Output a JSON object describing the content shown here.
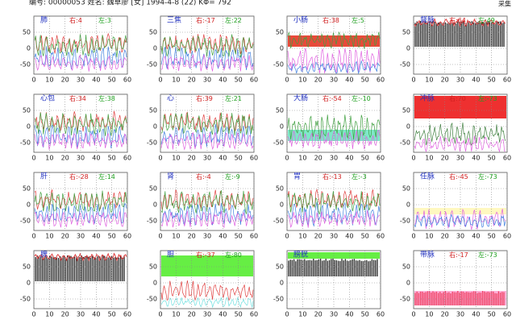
{
  "header": {
    "text": "编号: 00000053  姓名: 魏草廖 [女] 1994-4-8 (22)  KΦ= 792",
    "corner": "采集"
  },
  "right_prefix": "右:",
  "left_prefix": "左:",
  "ylim": [
    -80,
    100
  ],
  "yticks": [
    50,
    0,
    -50
  ],
  "xlim": [
    0,
    60
  ],
  "xticks": [
    0,
    10,
    20,
    30,
    40,
    50,
    60
  ],
  "panels": [
    {
      "name": "肺",
      "right": 4,
      "left": 3
    },
    {
      "name": "三焦",
      "right": -17,
      "left": 22
    },
    {
      "name": "小肠",
      "right": 38,
      "left": 5
    },
    {
      "name": "督脉",
      "right": 64,
      "left": 49
    },
    {
      "name": "心包",
      "right": 34,
      "left": 38
    },
    {
      "name": "心",
      "right": 39,
      "left": 21
    },
    {
      "name": "大肠",
      "right": -54,
      "left": -10
    },
    {
      "name": "冲脉",
      "right": 70,
      "left": -73
    },
    {
      "name": "肝",
      "right": -28,
      "left": 14
    },
    {
      "name": "肾",
      "right": -4,
      "left": -9
    },
    {
      "name": "胃",
      "right": -13,
      "left": -3
    },
    {
      "name": "任脉",
      "right": -45,
      "left": -73
    },
    {
      "name": "脾",
      "right": null,
      "left": null
    },
    {
      "name": "胆",
      "right": -37,
      "left": 80
    },
    {
      "name": "膀胱",
      "right": null,
      "left": null
    },
    {
      "name": "带脉",
      "right": -17,
      "left": -73
    }
  ]
}
